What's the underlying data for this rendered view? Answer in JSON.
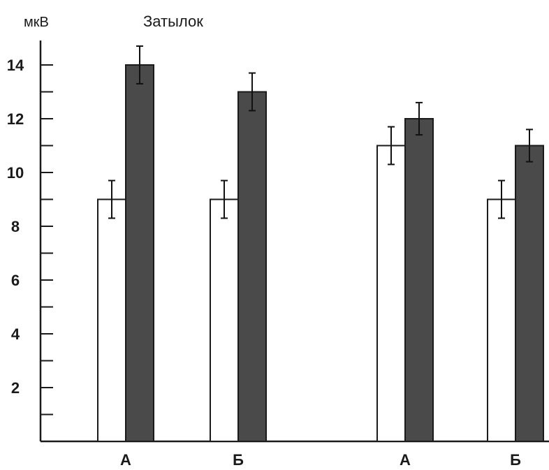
{
  "chart_data": {
    "type": "bar",
    "title": "Затылок",
    "ylabel": "мкВ",
    "xlabel": "",
    "ylim": [
      0,
      15
    ],
    "yticks": [
      2,
      4,
      6,
      8,
      10,
      12,
      14
    ],
    "categories": [
      "А",
      "Б",
      "А",
      "Б"
    ],
    "series": [
      {
        "style": "open",
        "color": "#ffffff",
        "values": [
          9,
          9,
          11,
          9
        ],
        "errors": [
          0.7,
          0.7,
          0.7,
          0.7
        ]
      },
      {
        "style": "dark",
        "color": "#4a4a4a",
        "values": [
          14,
          13,
          12,
          11
        ],
        "errors": [
          0.7,
          0.7,
          0.6,
          0.6
        ]
      }
    ],
    "grid": false,
    "legend": "none"
  }
}
